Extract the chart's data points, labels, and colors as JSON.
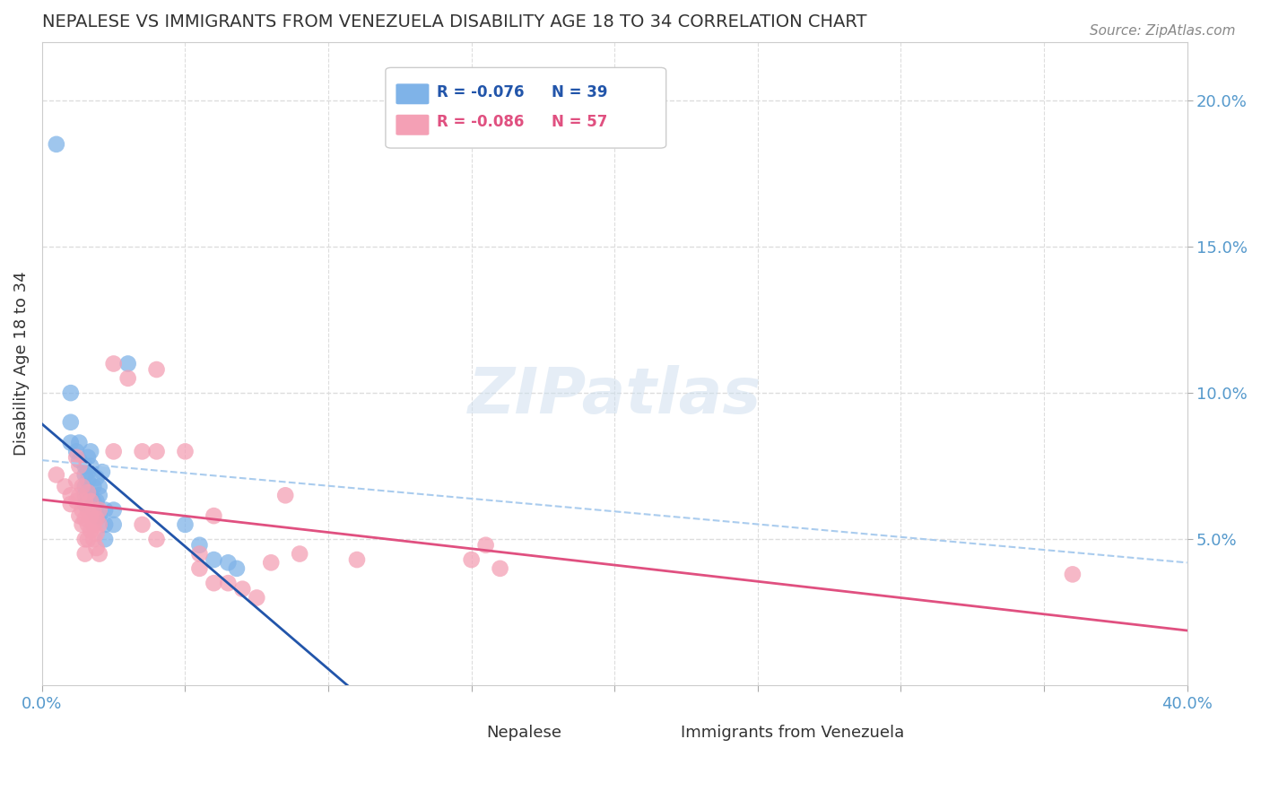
{
  "title": "NEPALESE VS IMMIGRANTS FROM VENEZUELA DISABILITY AGE 18 TO 34 CORRELATION CHART",
  "source": "Source: ZipAtlas.com",
  "ylabel": "Disability Age 18 to 34",
  "watermark": "ZIPatlas",
  "legend_blue_r": "-0.076",
  "legend_blue_n": "39",
  "legend_pink_r": "-0.086",
  "legend_pink_n": "57",
  "nepalese_color": "#7fb3e8",
  "venezuela_color": "#f4a0b5",
  "nepalese_line_color": "#2255aa",
  "venezuela_line_color": "#e05080",
  "dashed_line_color": "#aaccee",
  "background_color": "#ffffff",
  "grid_color": "#dddddd",
  "title_color": "#333333",
  "axis_label_color": "#5599cc",
  "nepalese_points": [
    [
      0.005,
      0.185
    ],
    [
      0.01,
      0.1
    ],
    [
      0.01,
      0.09
    ],
    [
      0.01,
      0.083
    ],
    [
      0.012,
      0.08
    ],
    [
      0.013,
      0.083
    ],
    [
      0.013,
      0.077
    ],
    [
      0.015,
      0.075
    ],
    [
      0.015,
      0.072
    ],
    [
      0.015,
      0.068
    ],
    [
      0.015,
      0.065
    ],
    [
      0.015,
      0.062
    ],
    [
      0.016,
      0.078
    ],
    [
      0.016,
      0.073
    ],
    [
      0.016,
      0.07
    ],
    [
      0.017,
      0.08
    ],
    [
      0.017,
      0.075
    ],
    [
      0.017,
      0.065
    ],
    [
      0.018,
      0.068
    ],
    [
      0.018,
      0.063
    ],
    [
      0.018,
      0.06
    ],
    [
      0.019,
      0.071
    ],
    [
      0.019,
      0.063
    ],
    [
      0.019,
      0.058
    ],
    [
      0.02,
      0.068
    ],
    [
      0.02,
      0.065
    ],
    [
      0.02,
      0.058
    ],
    [
      0.021,
      0.073
    ],
    [
      0.022,
      0.06
    ],
    [
      0.022,
      0.055
    ],
    [
      0.022,
      0.05
    ],
    [
      0.025,
      0.06
    ],
    [
      0.025,
      0.055
    ],
    [
      0.03,
      0.11
    ],
    [
      0.05,
      0.055
    ],
    [
      0.055,
      0.048
    ],
    [
      0.06,
      0.043
    ],
    [
      0.065,
      0.042
    ],
    [
      0.068,
      0.04
    ]
  ],
  "venezuela_points": [
    [
      0.005,
      0.072
    ],
    [
      0.008,
      0.068
    ],
    [
      0.01,
      0.065
    ],
    [
      0.01,
      0.062
    ],
    [
      0.012,
      0.078
    ],
    [
      0.012,
      0.07
    ],
    [
      0.012,
      0.063
    ],
    [
      0.013,
      0.075
    ],
    [
      0.013,
      0.065
    ],
    [
      0.013,
      0.058
    ],
    [
      0.014,
      0.068
    ],
    [
      0.014,
      0.06
    ],
    [
      0.014,
      0.055
    ],
    [
      0.015,
      0.063
    ],
    [
      0.015,
      0.057
    ],
    [
      0.015,
      0.05
    ],
    [
      0.015,
      0.045
    ],
    [
      0.016,
      0.066
    ],
    [
      0.016,
      0.06
    ],
    [
      0.016,
      0.055
    ],
    [
      0.016,
      0.05
    ],
    [
      0.017,
      0.063
    ],
    [
      0.017,
      0.058
    ],
    [
      0.017,
      0.053
    ],
    [
      0.018,
      0.06
    ],
    [
      0.018,
      0.055
    ],
    [
      0.018,
      0.05
    ],
    [
      0.019,
      0.057
    ],
    [
      0.019,
      0.052
    ],
    [
      0.019,
      0.047
    ],
    [
      0.02,
      0.06
    ],
    [
      0.02,
      0.055
    ],
    [
      0.02,
      0.045
    ],
    [
      0.025,
      0.11
    ],
    [
      0.025,
      0.08
    ],
    [
      0.03,
      0.105
    ],
    [
      0.035,
      0.08
    ],
    [
      0.035,
      0.055
    ],
    [
      0.04,
      0.108
    ],
    [
      0.04,
      0.08
    ],
    [
      0.04,
      0.05
    ],
    [
      0.05,
      0.08
    ],
    [
      0.055,
      0.045
    ],
    [
      0.055,
      0.04
    ],
    [
      0.06,
      0.058
    ],
    [
      0.06,
      0.035
    ],
    [
      0.065,
      0.035
    ],
    [
      0.07,
      0.033
    ],
    [
      0.075,
      0.03
    ],
    [
      0.08,
      0.042
    ],
    [
      0.085,
      0.065
    ],
    [
      0.09,
      0.045
    ],
    [
      0.11,
      0.043
    ],
    [
      0.15,
      0.043
    ],
    [
      0.155,
      0.048
    ],
    [
      0.16,
      0.04
    ],
    [
      0.36,
      0.038
    ]
  ],
  "xlim": [
    0.0,
    0.4
  ],
  "ylim": [
    0.0,
    0.22
  ],
  "yticks_right": [
    0.05,
    0.1,
    0.15,
    0.2
  ],
  "xticks": [
    0.0,
    0.05,
    0.1,
    0.15,
    0.2,
    0.25,
    0.3,
    0.35,
    0.4
  ]
}
